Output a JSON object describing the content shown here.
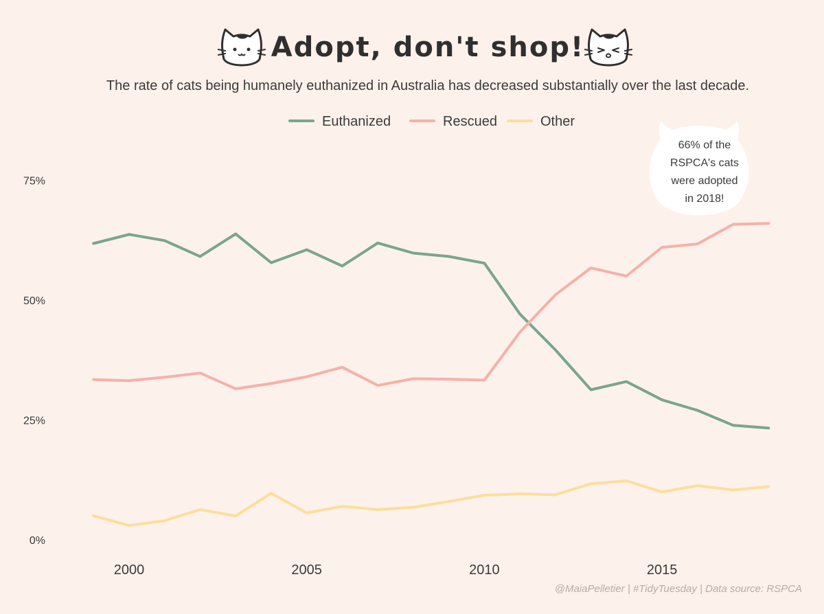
{
  "chart_data": {
    "type": "line",
    "title": "Adopt, don't shop!",
    "subtitle": "The rate of cats being humanely euthanized in Australia has decreased substantially over the last decade.",
    "caption": "@MaiaPelletier | #TidyTuesday | Data source: RSPCA",
    "annotation": {
      "lines": [
        "66% of the",
        "RSPCA's cats",
        "were adopted",
        "in 2018!"
      ],
      "fill": "#ffffff"
    },
    "legend_position": "top-center",
    "grid": false,
    "x": [
      1999,
      2000,
      2001,
      2002,
      2003,
      2004,
      2005,
      2006,
      2007,
      2008,
      2009,
      2010,
      2011,
      2012,
      2013,
      2014,
      2015,
      2016,
      2017,
      2018
    ],
    "xlim": [
      1998.3,
      2018.4
    ],
    "ylim": [
      -0.02,
      0.825
    ],
    "xticks": [
      2000,
      2005,
      2010,
      2015
    ],
    "xtick_labels": [
      "2000",
      "2005",
      "2010",
      "2015"
    ],
    "yticks": [
      0,
      0.25,
      0.5,
      0.75
    ],
    "ytick_labels": [
      "0%",
      "25%",
      "50%",
      "75%"
    ],
    "series": [
      {
        "name": "Euthanized",
        "color": "#7aa58d",
        "values": [
          0.618,
          0.637,
          0.624,
          0.591,
          0.638,
          0.578,
          0.605,
          0.571,
          0.619,
          0.598,
          0.591,
          0.577,
          0.471,
          0.396,
          0.313,
          0.33,
          0.292,
          0.27,
          0.239,
          0.233
        ]
      },
      {
        "name": "Rescued",
        "color": "#f4b2a9",
        "values": [
          0.334,
          0.332,
          0.339,
          0.348,
          0.315,
          0.326,
          0.34,
          0.36,
          0.322,
          0.336,
          0.335,
          0.333,
          0.433,
          0.511,
          0.567,
          0.55,
          0.61,
          0.617,
          0.658,
          0.66
        ]
      },
      {
        "name": "Other",
        "color": "#fbdf9c",
        "values": [
          0.05,
          0.03,
          0.04,
          0.063,
          0.05,
          0.097,
          0.056,
          0.07,
          0.063,
          0.068,
          0.08,
          0.093,
          0.096,
          0.094,
          0.117,
          0.123,
          0.1,
          0.113,
          0.104,
          0.111
        ]
      }
    ]
  }
}
